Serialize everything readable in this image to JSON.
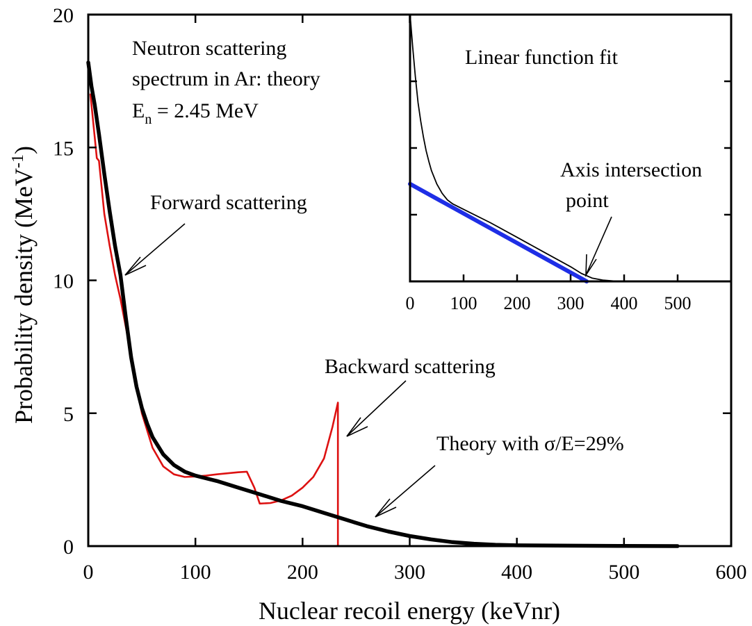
{
  "chart_data": [
    {
      "type": "line",
      "title": "",
      "xlabel": "Nuclear recoil energy (keVnr)",
      "ylabel": "Probability density (MeV",
      "ylabel_superscript": "-1",
      "ylabel_close": ")",
      "xlim": [
        0,
        600
      ],
      "ylim": [
        0,
        20
      ],
      "x_ticks": [
        "0",
        "100",
        "200",
        "300",
        "400",
        "500",
        "600"
      ],
      "y_ticks": [
        "0",
        "5",
        "10",
        "15",
        "20"
      ],
      "grid": false,
      "legend": "none",
      "series": [
        {
          "color": "#dd1111",
          "x": [
            2,
            5,
            8,
            10,
            15,
            20,
            25,
            30,
            40,
            50,
            60,
            70,
            80,
            90,
            100,
            110,
            120,
            130,
            140,
            148,
            155,
            160,
            170,
            180,
            190,
            200,
            210,
            220,
            228,
            233,
            233
          ],
          "y": [
            17.0,
            15.8,
            14.6,
            14.5,
            12.5,
            11.3,
            10.2,
            9.3,
            7.2,
            5.0,
            3.7,
            3.0,
            2.7,
            2.6,
            2.62,
            2.65,
            2.7,
            2.74,
            2.78,
            2.8,
            2.2,
            1.6,
            1.62,
            1.72,
            1.9,
            2.2,
            2.6,
            3.3,
            4.5,
            5.4,
            0
          ]
        },
        {
          "color": "#000000",
          "x": [
            0,
            3,
            6,
            10,
            15,
            20,
            25,
            30,
            35,
            40,
            45,
            50,
            55,
            60,
            70,
            80,
            90,
            100,
            110,
            120,
            140,
            160,
            180,
            200,
            220,
            240,
            260,
            280,
            300,
            320,
            340,
            360,
            380,
            400,
            450,
            500,
            550
          ],
          "y": [
            18.2,
            17.3,
            16.6,
            15.5,
            14.0,
            12.6,
            11.3,
            10.2,
            8.6,
            7.1,
            6.0,
            5.2,
            4.6,
            4.1,
            3.45,
            3.05,
            2.8,
            2.65,
            2.55,
            2.45,
            2.2,
            1.95,
            1.7,
            1.5,
            1.25,
            1.0,
            0.75,
            0.55,
            0.38,
            0.25,
            0.15,
            0.09,
            0.05,
            0.03,
            0.015,
            0.005,
            0.0
          ]
        }
      ],
      "annotations": {
        "spectrum_line1": "Neutron scattering",
        "spectrum_line2": "spectrum in Ar: theory",
        "energy_prefix": "E",
        "energy_subscript": "n",
        "energy_value": " = 2.45 MeV",
        "forward": "Forward scattering",
        "backward": "Backward scattering",
        "theory": "Theory with σ/E=29%"
      }
    },
    {
      "type": "line",
      "title": "Linear function fit",
      "xlabel": "",
      "ylabel": "",
      "xlim": [
        0,
        600
      ],
      "x_ticks": [
        "0",
        "100",
        "200",
        "300",
        "400",
        "500"
      ],
      "grid": false,
      "legend": "none",
      "series": [
        {
          "color": "#000000",
          "x": [
            0,
            5,
            10,
            15,
            20,
            25,
            30,
            35,
            40,
            50,
            60,
            70,
            80,
            100,
            150,
            200,
            250,
            300,
            320,
            340,
            360,
            380,
            400
          ],
          "y": [
            20.0,
            17.5,
            15.3,
            13.4,
            12.0,
            10.8,
            9.8,
            9.0,
            8.3,
            7.3,
            6.6,
            6.1,
            5.8,
            5.4,
            4.4,
            3.3,
            2.2,
            1.1,
            0.6,
            0.25,
            0.1,
            0.03,
            0.0
          ]
        },
        {
          "color": "#1e2ee6",
          "x": [
            0,
            330
          ],
          "y": [
            7.3,
            0.0
          ]
        }
      ],
      "annotations": {
        "axis_line1": "Axis intersection",
        "axis_line2": "point"
      }
    }
  ]
}
